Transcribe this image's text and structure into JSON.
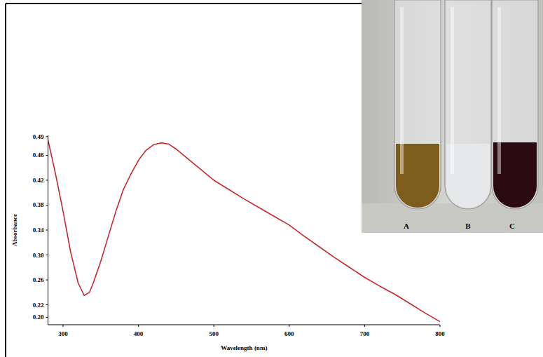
{
  "chart_data": {
    "type": "line",
    "x_label": "Wavelength (nm)",
    "y_label": "Absorbance",
    "x": [
      280,
      290,
      300,
      310,
      320,
      328,
      335,
      340,
      350,
      360,
      370,
      380,
      390,
      400,
      410,
      420,
      430,
      440,
      450,
      460,
      470,
      480,
      490,
      500,
      520,
      540,
      560,
      580,
      600,
      620,
      640,
      660,
      680,
      700,
      720,
      740,
      760,
      780,
      800
    ],
    "values": [
      0.485,
      0.43,
      0.37,
      0.305,
      0.255,
      0.235,
      0.24,
      0.255,
      0.29,
      0.33,
      0.37,
      0.405,
      0.43,
      0.452,
      0.468,
      0.477,
      0.48,
      0.478,
      0.47,
      0.46,
      0.45,
      0.44,
      0.43,
      0.42,
      0.405,
      0.39,
      0.376,
      0.362,
      0.348,
      0.33,
      0.313,
      0.296,
      0.28,
      0.264,
      0.25,
      0.237,
      0.222,
      0.207,
      0.193
    ],
    "color": "#c8282d",
    "xlim": [
      280,
      800
    ],
    "ylim": [
      0.188,
      0.492
    ],
    "xticks": [
      300,
      400,
      500,
      600,
      700,
      800
    ],
    "yticks": [
      {
        "value": 0.2,
        "label": "0.20"
      },
      0.22,
      0.26,
      {
        "value": 0.3,
        "label": "0.30"
      },
      0.34,
      0.38,
      0.42,
      0.46,
      0.49
    ],
    "grid": false
  },
  "photo": {
    "labels": [
      "A",
      "B",
      "C"
    ]
  }
}
